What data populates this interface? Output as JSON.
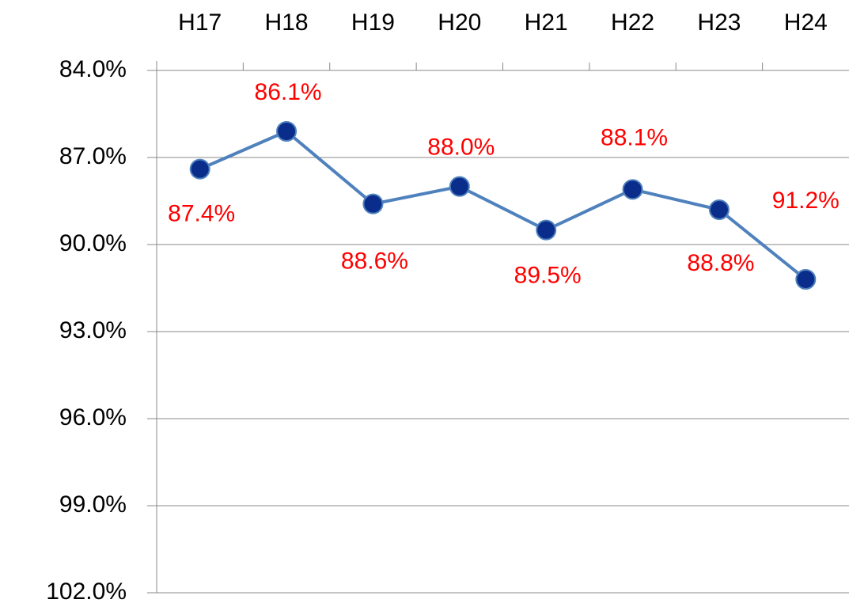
{
  "chart_data": {
    "type": "line",
    "categories": [
      "H17",
      "H18",
      "H19",
      "H20",
      "H21",
      "H22",
      "H23",
      "H24"
    ],
    "series": [
      {
        "color": "#4f81bd",
        "marker_color": "#0a2d8c",
        "values": [
          87.4,
          86.1,
          88.6,
          88.0,
          89.5,
          88.1,
          88.8,
          91.2
        ],
        "value_labels": [
          "87.4%",
          "86.1%",
          "88.6%",
          "88.0%",
          "89.5%",
          "88.1%",
          "88.8%",
          "91.2%"
        ],
        "label_color": "#ff0000"
      }
    ],
    "ylim": [
      84,
      102
    ],
    "y_reversed": true,
    "yticks": [
      {
        "value": 84,
        "label": "84.0%"
      },
      {
        "value": 87,
        "label": "87.0%"
      },
      {
        "value": 90,
        "label": "90.0%"
      },
      {
        "value": 93,
        "label": "93.0%"
      },
      {
        "value": 96,
        "label": "96.0%"
      },
      {
        "value": 99,
        "label": "99.0%"
      },
      {
        "value": 102,
        "label": "102.0%"
      }
    ],
    "grid": true,
    "x_axis_position": "top"
  }
}
